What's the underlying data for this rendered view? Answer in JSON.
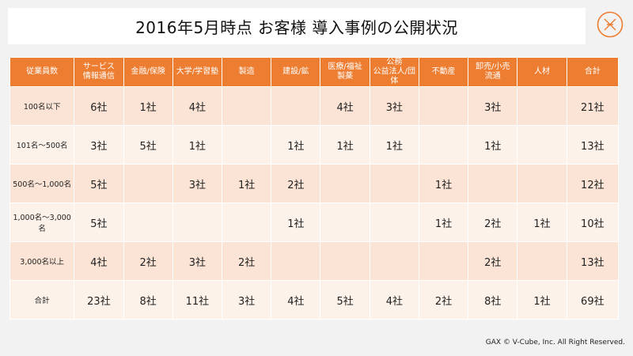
{
  "title": "2016年5月時点 お客様 導入事例の公開状況",
  "logo_icon": "diamond-logo-icon",
  "accent_color": "#ed7d31",
  "headers": [
    "従業員数",
    "サービス\n情報通信",
    "金融/保険",
    "大学/学習塾",
    "製造",
    "建設/鉱",
    "医療/福祉\n製薬",
    "公務\n公益法人/団体",
    "不動産",
    "卸売/小売\n流通",
    "人材",
    "合計"
  ],
  "rows": [
    {
      "label": "100名以下",
      "cells": [
        "6社",
        "1社",
        "4社",
        "",
        "",
        "4社",
        "3社",
        "",
        "3社",
        "",
        "21社"
      ]
    },
    {
      "label": "101名～500名",
      "cells": [
        "3社",
        "5社",
        "1社",
        "",
        "1社",
        "1社",
        "1社",
        "",
        "1社",
        "",
        "13社"
      ]
    },
    {
      "label": "500名～1,000名",
      "cells": [
        "5社",
        "",
        "3社",
        "1社",
        "2社",
        "",
        "",
        "1社",
        "",
        "",
        "12社"
      ]
    },
    {
      "label": "1,000名～3,000名",
      "cells": [
        "5社",
        "",
        "",
        "",
        "1社",
        "",
        "",
        "1社",
        "2社",
        "1社",
        "10社"
      ]
    },
    {
      "label": "3,000名以上",
      "cells": [
        "4社",
        "2社",
        "3社",
        "2社",
        "",
        "",
        "",
        "",
        "2社",
        "",
        "13社"
      ]
    },
    {
      "label": "合計",
      "cells": [
        "23社",
        "8社",
        "11社",
        "3社",
        "4社",
        "5社",
        "4社",
        "2社",
        "8社",
        "1社",
        "69社"
      ]
    }
  ],
  "footer": "GAX © V-Cube, Inc. All Right Reserved."
}
